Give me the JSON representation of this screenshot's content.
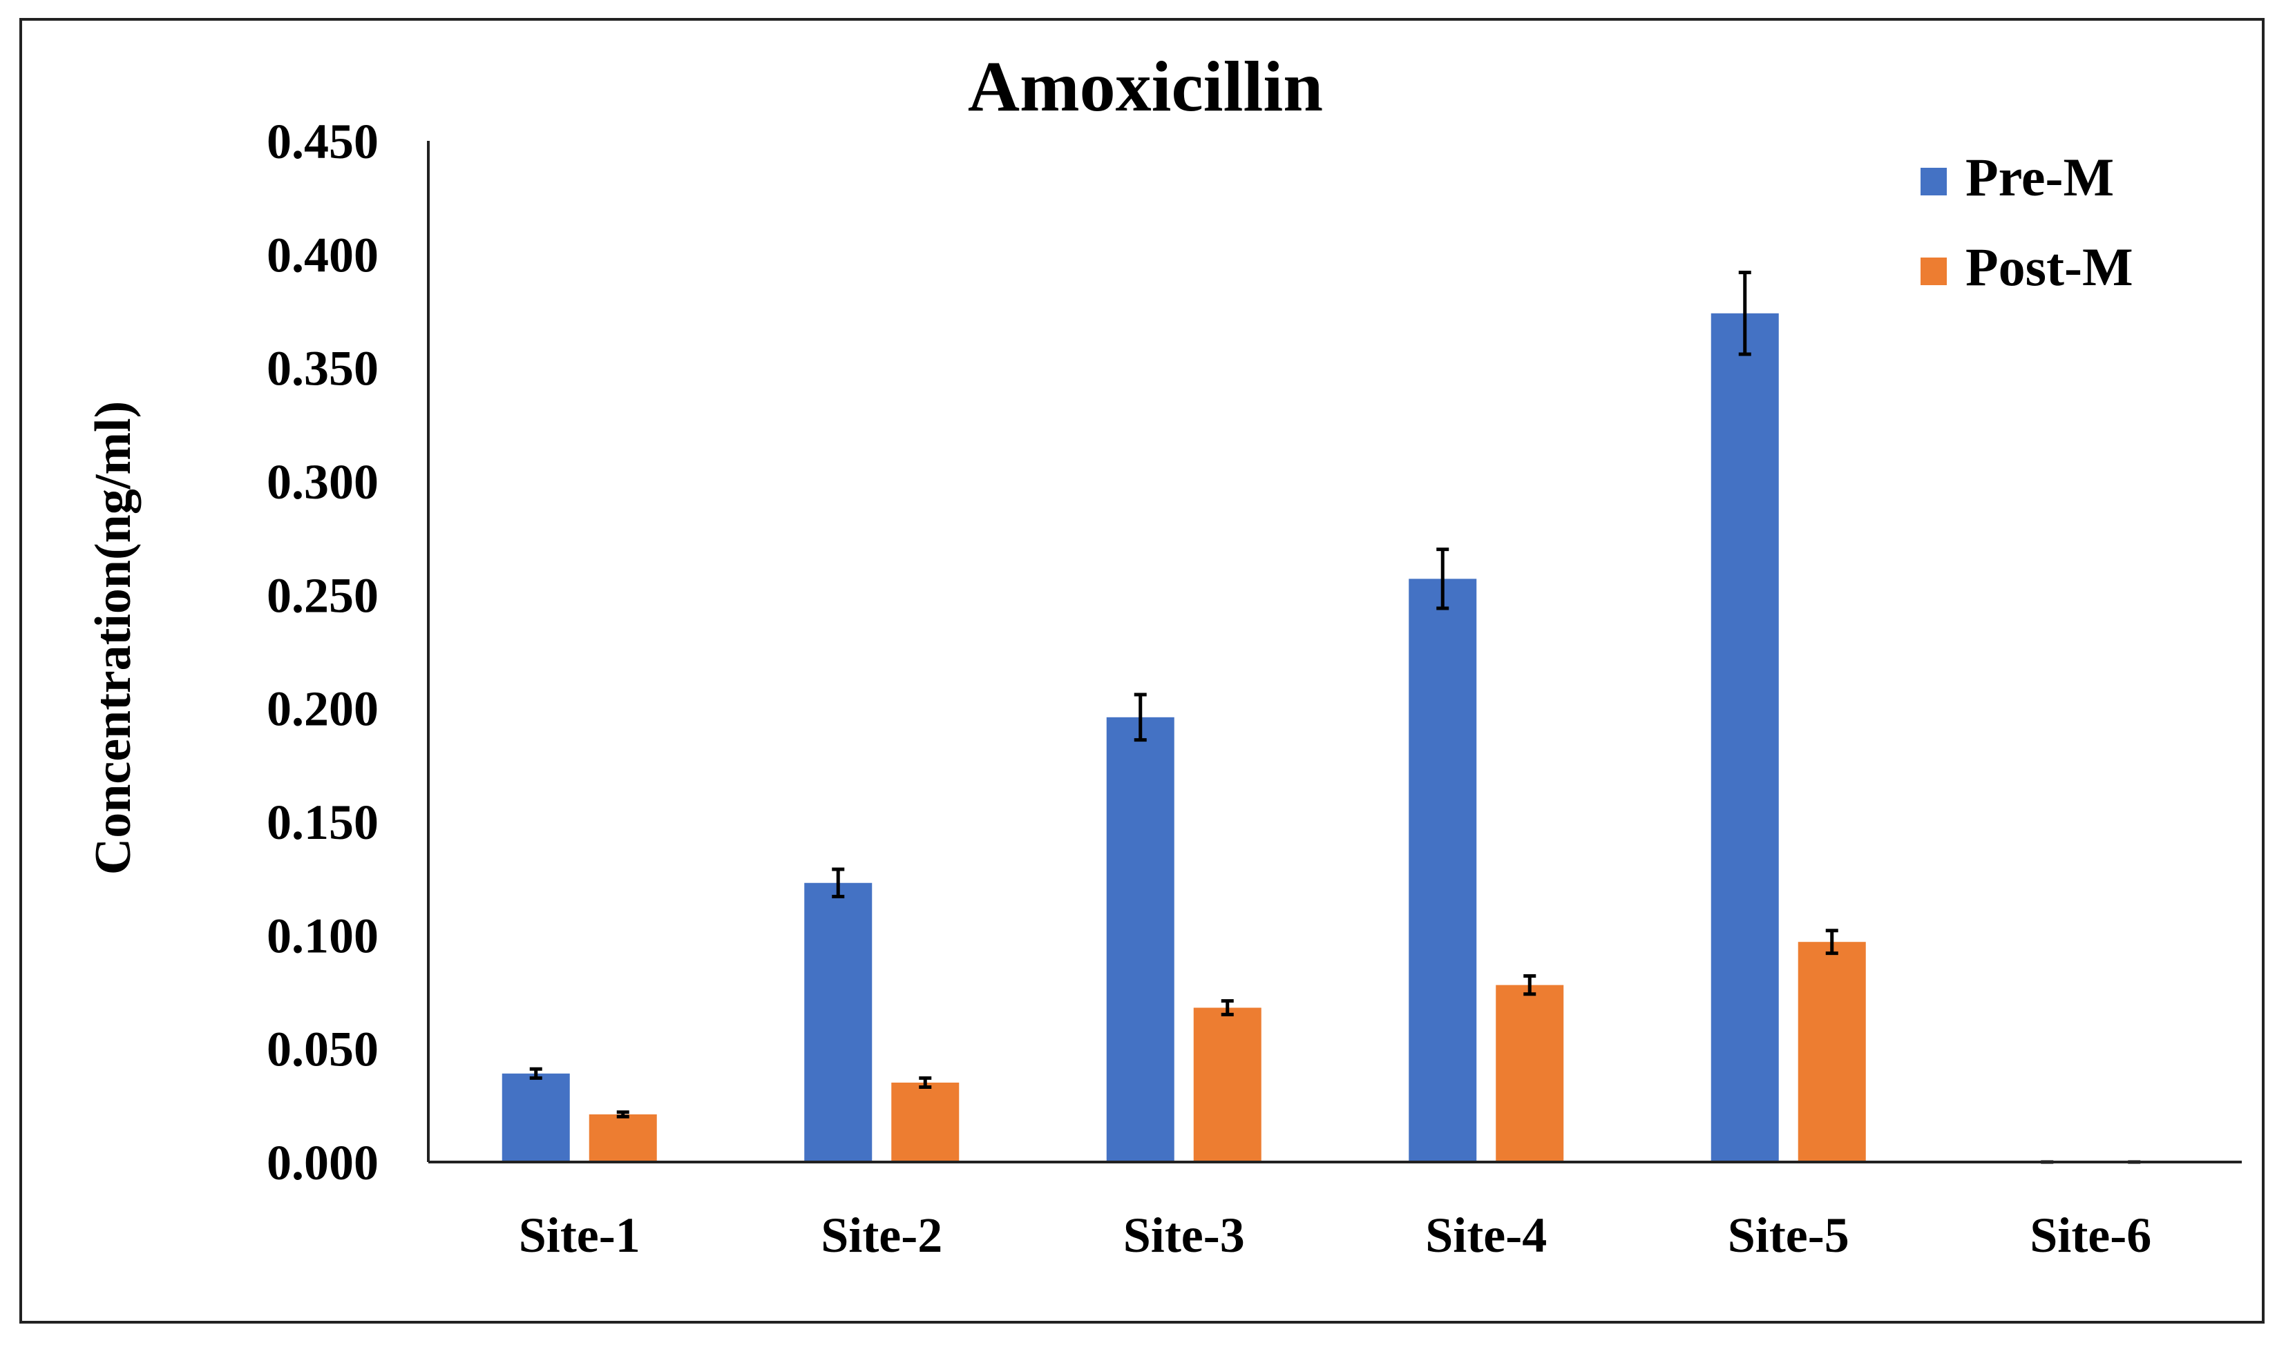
{
  "chart_data": {
    "type": "bar",
    "title": "Amoxicillin",
    "xlabel": "",
    "ylabel": "Concentration(ng/ml)",
    "ylim": [
      0,
      0.45
    ],
    "yticks": [
      "0.000",
      "0.050",
      "0.100",
      "0.150",
      "0.200",
      "0.250",
      "0.300",
      "0.350",
      "0.400",
      "0.450"
    ],
    "categories": [
      "Site-1",
      "Site-2",
      "Site-3",
      "Site-4",
      "Site-5",
      "Site-6"
    ],
    "series": [
      {
        "name": "Pre-M",
        "color": "#4472C4",
        "values": [
          0.039,
          0.123,
          0.196,
          0.257,
          0.374,
          0.0
        ],
        "errors": [
          0.002,
          0.006,
          0.01,
          0.013,
          0.018,
          0.0
        ]
      },
      {
        "name": "Post-M",
        "color": "#ED7D31",
        "values": [
          0.021,
          0.035,
          0.068,
          0.078,
          0.097,
          0.0
        ],
        "errors": [
          0.001,
          0.002,
          0.003,
          0.004,
          0.005,
          0.0
        ]
      }
    ],
    "legend_position": "top-right",
    "grid": false
  }
}
